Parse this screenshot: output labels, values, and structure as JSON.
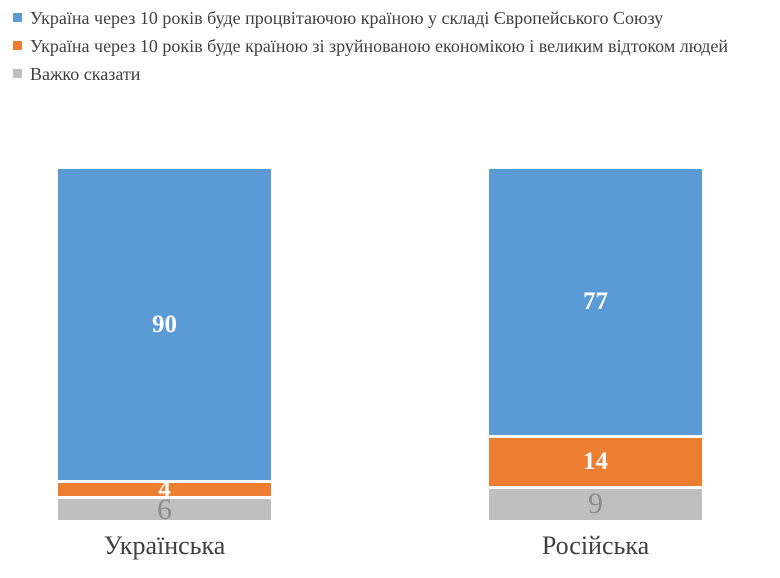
{
  "chart_data": {
    "type": "bar",
    "variant": "stacked-column-100-percent",
    "title": "",
    "xlabel": "",
    "ylabel": "",
    "ylim": [
      0,
      100
    ],
    "axes_visible": false,
    "gridlines": false,
    "data_labels": true,
    "legend_position": "top-left",
    "categories": [
      "Українська",
      "Російська"
    ],
    "series": [
      {
        "name": "Україна через 10 років буде процвітаючою країною у складі Європейського Союзу",
        "color": "#5B9BD5",
        "label_color": "#FFFFFF",
        "values": [
          90,
          77
        ]
      },
      {
        "name": "Україна через 10 років буде країною зі зруйнованою економікою і великим відтоком людей",
        "color": "#ED7D31",
        "label_color": "#FFFFFF",
        "values": [
          4,
          14
        ]
      },
      {
        "name": "Важко сказати",
        "color": "#BFBFBF",
        "label_color": "#8C8C8C",
        "values": [
          6,
          9
        ]
      }
    ],
    "colors": {
      "background": "#FFFFFF",
      "text": "#404040"
    }
  }
}
